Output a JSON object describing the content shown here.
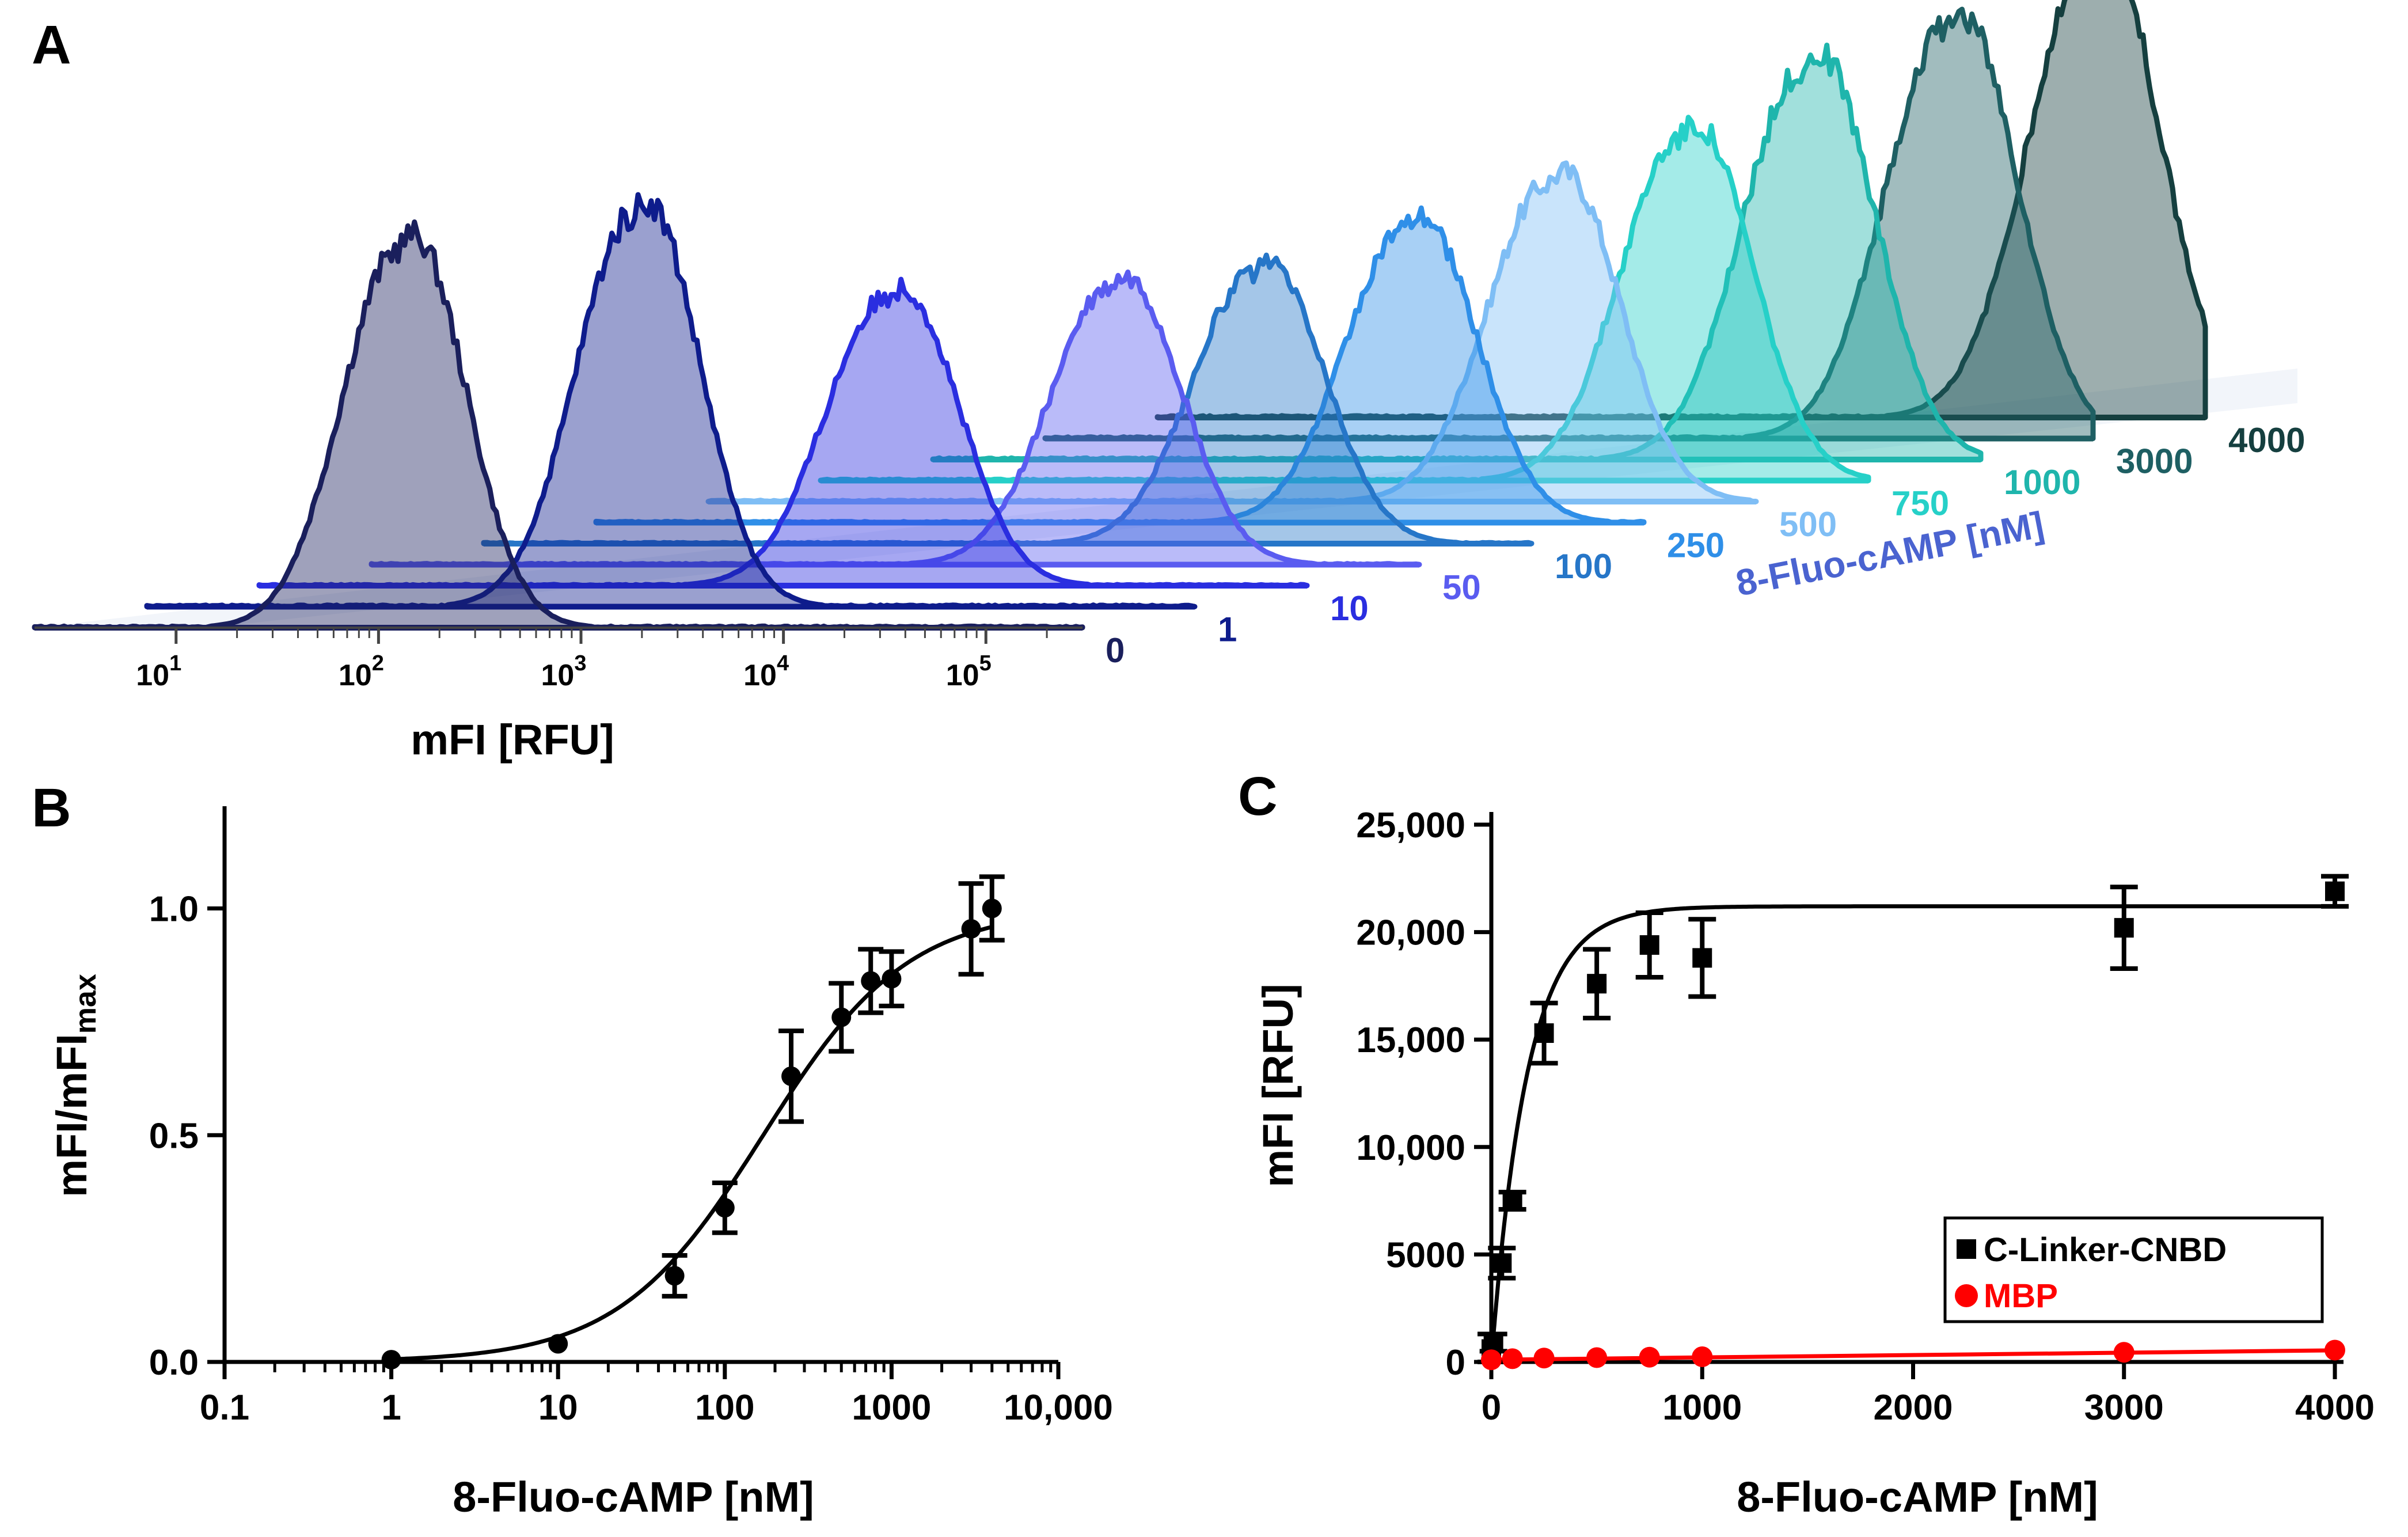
{
  "panel_labels": {
    "a": "A",
    "b": "B",
    "c": "C"
  },
  "colors": {
    "axis": "#000000",
    "fit_black": "#000000",
    "mbp": "#ff0000",
    "series_label_left": "#3d55d6",
    "series_label_right": "#6fb3c4"
  },
  "panel_a": {
    "xlabel": "mFI [RFU]",
    "zlabel": "8-Fluo-cAMP [nM]",
    "x_ticks": [
      {
        "base": "10",
        "exp": "1"
      },
      {
        "base": "10",
        "exp": "2"
      },
      {
        "base": "10",
        "exp": "3"
      },
      {
        "base": "10",
        "exp": "4"
      },
      {
        "base": "10",
        "exp": "5"
      }
    ]
  },
  "chart_data": [
    {
      "type": "area",
      "panel": "A",
      "title": "",
      "xlabel": "mFI [RFU]",
      "zlabel": "8-Fluo-cAMP [nM]",
      "x_scale": "log",
      "xlim": [
        2,
        300000
      ],
      "series": [
        {
          "name": "0",
          "peak_log10_mfi": 2.1,
          "rel_height": 0.62,
          "width_decades": 0.28,
          "color": "#1a1f5c"
        },
        {
          "name": "1",
          "peak_log10_mfi": 2.7,
          "rel_height": 0.64,
          "width_decades": 0.28,
          "color": "#0e1c8c"
        },
        {
          "name": "10",
          "peak_log10_mfi": 3.4,
          "rel_height": 0.47,
          "width_decades": 0.3,
          "color": "#2a2ee0"
        },
        {
          "name": "50",
          "peak_log10_mfi": 3.95,
          "rel_height": 0.45,
          "width_decades": 0.3,
          "color": "#5a5cf0"
        },
        {
          "name": "100",
          "peak_log10_mfi": 4.1,
          "rel_height": 0.44,
          "width_decades": 0.3,
          "color": "#2676c8"
        },
        {
          "name": "250",
          "peak_log10_mfi": 4.3,
          "rel_height": 0.48,
          "width_decades": 0.3,
          "color": "#2f8fe8"
        },
        {
          "name": "500",
          "peak_log10_mfi": 4.45,
          "rel_height": 0.52,
          "width_decades": 0.3,
          "color": "#7fbef5"
        },
        {
          "name": "750",
          "peak_log10_mfi": 4.55,
          "rel_height": 0.56,
          "width_decades": 0.3,
          "color": "#26d0c8"
        },
        {
          "name": "1000",
          "peak_log10_mfi": 4.6,
          "rel_height": 0.64,
          "width_decades": 0.3,
          "color": "#1fb5ac"
        },
        {
          "name": "3000",
          "peak_log10_mfi": 4.75,
          "rel_height": 0.67,
          "width_decades": 0.3,
          "color": "#1e5f63"
        },
        {
          "name": "4000",
          "peak_log10_mfi": 4.9,
          "rel_height": 0.74,
          "width_decades": 0.3,
          "color": "#153f3f"
        }
      ]
    },
    {
      "type": "scatter",
      "panel": "B",
      "title": "",
      "xlabel": "8-Fluo-cAMP [nM]",
      "ylabel": "mFI/mFI",
      "ylabel_sub": "max",
      "x_scale": "log",
      "xlim": [
        0.1,
        10000
      ],
      "ylim": [
        0,
        1.2
      ],
      "x_ticks": [
        "0.1",
        "1",
        "10",
        "100",
        "1000",
        "10,000"
      ],
      "x_tick_values": [
        0.1,
        1,
        10,
        100,
        1000,
        10000
      ],
      "y_ticks": [
        "0.0",
        "0.5",
        "1.0"
      ],
      "y_tick_values": [
        0,
        0.5,
        1.0
      ],
      "points": [
        {
          "x": 1,
          "y": 0.005,
          "err": 0
        },
        {
          "x": 10,
          "y": 0.04,
          "err": 0
        },
        {
          "x": 50,
          "y": 0.19,
          "err": 0.045
        },
        {
          "x": 100,
          "y": 0.34,
          "err": 0.055
        },
        {
          "x": 250,
          "y": 0.63,
          "err": 0.1
        },
        {
          "x": 500,
          "y": 0.76,
          "err": 0.075
        },
        {
          "x": 750,
          "y": 0.84,
          "err": 0.07
        },
        {
          "x": 1000,
          "y": 0.845,
          "err": 0.06
        },
        {
          "x": 3000,
          "y": 0.955,
          "err": 0.1
        },
        {
          "x": 4000,
          "y": 1.0,
          "err": 0.07
        }
      ],
      "fit": {
        "model": "hill",
        "bottom": 0,
        "top": 1.0,
        "ec50": 170,
        "hill": 1.0
      }
    },
    {
      "type": "scatter",
      "panel": "C",
      "title": "",
      "xlabel": "8-Fluo-cAMP [nM]",
      "ylabel": "mFI [RFU]",
      "xlim": [
        0,
        4000
      ],
      "ylim": [
        0,
        25000
      ],
      "x_ticks": [
        "0",
        "1000",
        "2000",
        "3000",
        "4000"
      ],
      "x_tick_values": [
        0,
        1000,
        2000,
        3000,
        4000
      ],
      "y_ticks": [
        "0",
        "5000",
        "10,000",
        "15,000",
        "20,000",
        "25,000"
      ],
      "y_tick_values": [
        0,
        5000,
        10000,
        15000,
        20000,
        25000
      ],
      "legend": "bottom-right",
      "series": [
        {
          "name": "C-Linker-CNBD",
          "marker": "square",
          "color": "#000000",
          "points": [
            {
              "x": 0,
              "y": 600,
              "err": 700
            },
            {
              "x": 10,
              "y": 900,
              "err": 400
            },
            {
              "x": 50,
              "y": 4600,
              "err": 700
            },
            {
              "x": 100,
              "y": 7500,
              "err": 400
            },
            {
              "x": 250,
              "y": 15300,
              "err": 1400
            },
            {
              "x": 500,
              "y": 17600,
              "err": 1600
            },
            {
              "x": 750,
              "y": 19400,
              "err": 1500
            },
            {
              "x": 1000,
              "y": 18800,
              "err": 1800
            },
            {
              "x": 3000,
              "y": 20200,
              "err": 1900
            },
            {
              "x": 4000,
              "y": 21900,
              "err": 700
            }
          ],
          "fit": {
            "model": "one-site",
            "bmax": 21200,
            "kd": 170
          }
        },
        {
          "name": "MBP",
          "marker": "circle",
          "color": "#ff0000",
          "points": [
            {
              "x": 0,
              "y": 100
            },
            {
              "x": 100,
              "y": 150
            },
            {
              "x": 250,
              "y": 180
            },
            {
              "x": 500,
              "y": 200
            },
            {
              "x": 750,
              "y": 220
            },
            {
              "x": 1000,
              "y": 240
            },
            {
              "x": 3000,
              "y": 450
            },
            {
              "x": 4000,
              "y": 550
            }
          ],
          "fit": {
            "model": "linear",
            "intercept": 100,
            "slope": 0.11
          }
        }
      ]
    }
  ]
}
